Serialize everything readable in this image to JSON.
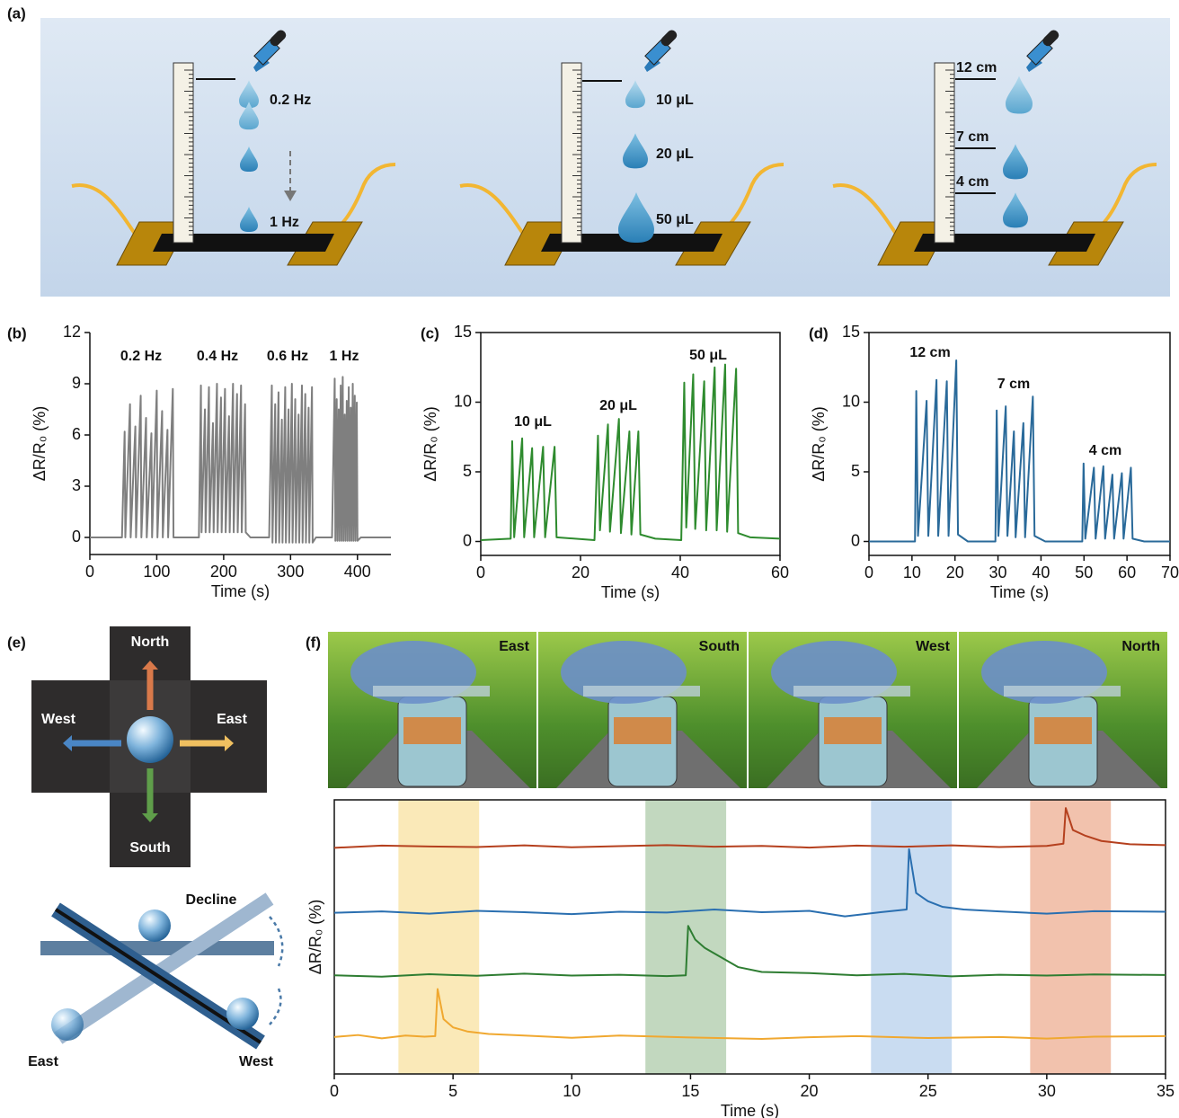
{
  "panel_labels": [
    "(a)",
    "(b)",
    "(c)",
    "(d)",
    "(e)",
    "(f)"
  ],
  "schematic": {
    "frequency": [
      "0.2 Hz",
      "1 Hz"
    ],
    "volume": [
      "10 μL",
      "20 μL",
      "50 μL"
    ],
    "height": [
      "12 cm",
      "7 cm",
      "4 cm"
    ]
  },
  "directions": {
    "cross": [
      "North",
      "West",
      "East",
      "South"
    ],
    "tilt": [
      "Decline",
      "East",
      "West"
    ]
  },
  "photos": [
    "East",
    "South",
    "West",
    "North"
  ],
  "chart_data": [
    {
      "type": "line",
      "xlabel": "Time (s)",
      "ylabel": "ΔR/R₀ (%)",
      "color": "#7f7f7f",
      "annotations": [
        "0.2 Hz",
        "0.4 Hz",
        "0.6 Hz",
        "1 Hz"
      ],
      "xlim": [
        0,
        450
      ],
      "ylim": [
        -1,
        12
      ],
      "xticks": [
        0,
        100,
        200,
        300,
        400
      ],
      "yticks": [
        0,
        3,
        6,
        9,
        12
      ],
      "x": [
        0,
        48,
        52,
        53,
        60,
        61,
        68,
        69,
        76,
        77,
        84,
        85,
        92,
        93,
        100,
        101,
        108,
        109,
        116,
        117,
        124,
        125,
        135,
        163,
        166,
        167,
        172,
        173,
        178,
        179,
        184,
        185,
        190,
        191,
        196,
        197,
        202,
        203,
        208,
        209,
        214,
        215,
        220,
        221,
        226,
        227,
        232,
        233,
        240,
        268,
        272,
        273,
        277,
        278,
        282,
        283,
        287,
        288,
        292,
        293,
        297,
        298,
        302,
        303,
        307,
        308,
        312,
        313,
        317,
        318,
        322,
        323,
        327,
        328,
        332,
        333,
        338,
        362,
        366,
        367,
        369,
        370,
        372,
        373,
        375,
        376,
        378,
        379,
        381,
        382,
        384,
        385,
        387,
        388,
        390,
        391,
        393,
        394,
        396,
        397,
        399,
        400,
        405,
        450
      ],
      "values": [
        0,
        0,
        6.2,
        0,
        7.8,
        0,
        6.5,
        0,
        8.3,
        0,
        7.0,
        0,
        6.1,
        0,
        8.6,
        0,
        7.4,
        0,
        6.3,
        0,
        8.7,
        0,
        0,
        0,
        8.9,
        0.3,
        7.5,
        0.3,
        8.8,
        0.3,
        6.7,
        0.3,
        9.0,
        0.3,
        8.2,
        0.3,
        8.7,
        0.3,
        7.1,
        0.3,
        9.0,
        0.3,
        8.4,
        0.3,
        8.9,
        0.3,
        7.8,
        0.3,
        0,
        0,
        8.9,
        -0.3,
        7.8,
        -0.3,
        8.5,
        -0.3,
        6.9,
        -0.3,
        8.8,
        -0.3,
        7.5,
        -0.3,
        9.0,
        -0.3,
        8.1,
        -0.3,
        7.2,
        -0.3,
        8.9,
        -0.3,
        8.4,
        -0.3,
        7.6,
        -0.3,
        8.8,
        -0.3,
        0,
        0,
        9.3,
        -0.2,
        8.1,
        -0.2,
        7.5,
        -0.2,
        8.9,
        -0.2,
        9.4,
        -0.2,
        7.2,
        -0.2,
        8.0,
        -0.2,
        8.8,
        -0.2,
        7.6,
        -0.2,
        9.0,
        -0.2,
        8.3,
        -0.2,
        7.9,
        -0.2,
        0,
        0
      ]
    },
    {
      "type": "line",
      "xlabel": "Time (s)",
      "ylabel": "ΔR/R₀ (%)",
      "color": "#2e8b2e",
      "annotations": [
        "10 μL",
        "20 μL",
        "50 μL"
      ],
      "xlim": [
        0,
        60
      ],
      "ylim": [
        -1,
        15
      ],
      "xticks": [
        0,
        20,
        40,
        60
      ],
      "yticks": [
        0,
        5,
        10,
        15
      ],
      "x": [
        0,
        6,
        6.3,
        6.7,
        8.3,
        8.7,
        10.3,
        10.7,
        12.5,
        12.9,
        14.8,
        15.2,
        22.8,
        23.5,
        23.9,
        25.5,
        25.9,
        27.7,
        28.1,
        29.8,
        30.2,
        31.6,
        32.0,
        35,
        40.2,
        40.8,
        41.2,
        42.6,
        43.0,
        44.8,
        45.2,
        46.9,
        47.3,
        49.0,
        49.4,
        51.2,
        51.6,
        54,
        60
      ],
      "values": [
        0.1,
        0.2,
        7.2,
        0.3,
        7.4,
        0.3,
        6.7,
        0.3,
        6.8,
        0.3,
        6.8,
        0.3,
        0.1,
        7.6,
        0.8,
        8.4,
        0.7,
        8.8,
        0.6,
        7.9,
        0.5,
        7.9,
        0.5,
        0.2,
        0.1,
        11.4,
        1.0,
        12.0,
        0.9,
        11.5,
        0.8,
        12.5,
        0.8,
        12.7,
        0.7,
        12.4,
        0.6,
        0.3,
        0.2
      ]
    },
    {
      "type": "line",
      "xlabel": "Time (s)",
      "ylabel": "ΔR/R₀ (%)",
      "color": "#2a6a9a",
      "annotations": [
        "12 cm",
        "7 cm",
        "4 cm"
      ],
      "xlim": [
        0,
        70
      ],
      "ylim": [
        -1,
        15
      ],
      "xticks": [
        0,
        10,
        20,
        30,
        40,
        50,
        60,
        70
      ],
      "yticks": [
        0,
        5,
        10,
        15
      ],
      "x": [
        0,
        10.7,
        11,
        11.4,
        13.4,
        13.8,
        15.7,
        16.1,
        18.1,
        18.5,
        20.3,
        20.7,
        23,
        29.4,
        29.7,
        30.1,
        31.8,
        32.2,
        33.7,
        34.1,
        35.9,
        36.3,
        38.1,
        38.5,
        41,
        49.6,
        49.9,
        50.3,
        52.3,
        52.7,
        54.5,
        54.9,
        56.6,
        57.0,
        58.8,
        59.2,
        60.9,
        61.3,
        64,
        70
      ],
      "values": [
        0,
        0,
        10.8,
        0.4,
        10.1,
        0.4,
        11.6,
        0.4,
        11.5,
        0.4,
        13.0,
        0.5,
        0,
        0,
        9.4,
        0.4,
        9.7,
        0.4,
        7.9,
        0.3,
        8.5,
        0.3,
        10.4,
        0.4,
        0,
        0,
        5.6,
        0.2,
        5.3,
        0.2,
        5.4,
        0.2,
        4.8,
        0.2,
        4.9,
        0.2,
        5.3,
        0.2,
        0,
        0
      ]
    },
    {
      "type": "line",
      "xlabel": "Time (s)",
      "ylabel": "ΔR/R₀ (%)",
      "xlim": [
        0,
        35
      ],
      "ylim": [
        0,
        100
      ],
      "xticks": [
        0,
        5,
        10,
        15,
        20,
        25,
        30,
        35
      ],
      "highlights": [
        {
          "xlim": [
            2.7,
            6.1
          ],
          "color": "#f5d77e"
        },
        {
          "xlim": [
            13.1,
            16.5
          ],
          "color": "#8fb88a"
        },
        {
          "xlim": [
            22.6,
            26
          ],
          "color": "#9cc0e6"
        },
        {
          "xlim": [
            29.3,
            32.7
          ],
          "color": "#e8906a"
        }
      ],
      "series": [
        {
          "color": "#f0a830",
          "x": [
            0,
            1,
            2,
            3,
            3.8,
            4.25,
            4.35,
            4.6,
            5,
            5.6,
            6.5,
            8,
            10,
            12,
            15,
            18,
            20,
            22,
            25,
            28,
            30,
            32,
            35
          ],
          "values": [
            13.5,
            14.2,
            13,
            14,
            13.6,
            13.8,
            31,
            20,
            17,
            15.5,
            14.6,
            14,
            13.2,
            14,
            13.3,
            12.8,
            13.4,
            13.8,
            13.1,
            13.5,
            12.9,
            13.6,
            13.8
          ]
        },
        {
          "color": "#2e7d32",
          "x": [
            0,
            2,
            4,
            6,
            8,
            10,
            12,
            14,
            14.8,
            14.9,
            15.2,
            15.6,
            16.2,
            17,
            18,
            20,
            22,
            24,
            26,
            28,
            30,
            32,
            35
          ],
          "values": [
            36,
            35.5,
            36.4,
            35.8,
            36.6,
            35.9,
            36.2,
            35.7,
            36,
            54,
            49,
            46,
            43,
            39,
            37.2,
            36.8,
            36,
            36.5,
            35.6,
            36.2,
            35.9,
            36.3,
            36.1
          ]
        },
        {
          "color": "#2a6fb0",
          "x": [
            0,
            2,
            4,
            6,
            8,
            10,
            12,
            14,
            16,
            18,
            20,
            21.5,
            23,
            24.1,
            24.2,
            24.5,
            25,
            25.6,
            26.5,
            28,
            30,
            32,
            35
          ],
          "values": [
            58.8,
            59.3,
            58.5,
            59.5,
            59,
            58.3,
            59.2,
            58.9,
            60,
            59,
            59.5,
            57.5,
            59,
            60,
            82,
            66,
            63,
            61,
            60,
            59.3,
            58.5,
            59.4,
            59.2
          ]
        },
        {
          "color": "#b5401e",
          "x": [
            0,
            2,
            4,
            6,
            8,
            10,
            12,
            14,
            16,
            18,
            20,
            22,
            24,
            26,
            28,
            30,
            30.7,
            30.8,
            31.1,
            31.6,
            32.3,
            33.5,
            35
          ],
          "values": [
            82.5,
            83.3,
            83,
            82.8,
            83.4,
            82.7,
            83.1,
            83.5,
            82.9,
            83.2,
            82.6,
            83.3,
            82.9,
            83.4,
            82.8,
            83.2,
            84,
            97,
            89,
            87,
            85,
            83.8,
            83.5
          ]
        }
      ]
    }
  ]
}
